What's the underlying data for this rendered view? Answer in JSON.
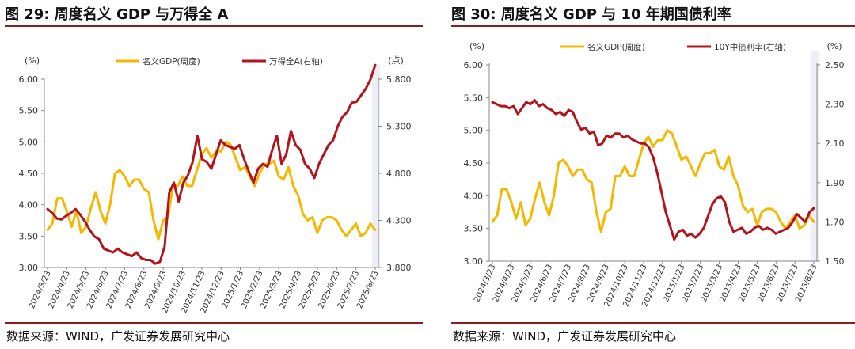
{
  "charts": [
    {
      "title": "图 29:  周度名义 GDP 与万得全 A",
      "source": "数据来源：WIND，广发证券发展研究中心",
      "chart_data": {
        "type": "line",
        "left_unit": "(%)",
        "right_unit": "(点)",
        "ylim": [
          3.0,
          6.0
        ],
        "y2lim": [
          3800,
          5800
        ],
        "yticks": [
          "3.00",
          "3.50",
          "4.00",
          "4.50",
          "5.00",
          "5.50",
          "6.00"
        ],
        "y2ticks": [
          "3,800",
          "4,300",
          "4,800",
          "5,300",
          "5,800"
        ],
        "xticks": [
          "2024/3/23",
          "2024/4/23",
          "2024/5/23",
          "2024/6/23",
          "2024/7/23",
          "2024/8/23",
          "2024/9/23",
          "2024/10/23",
          "2024/11/23",
          "2024/12/23",
          "2025/1/23",
          "2025/2/23",
          "2025/3/23",
          "2025/4/23",
          "2025/5/23",
          "2025/6/23",
          "2025/7/23",
          "2025/8/23"
        ],
        "series": [
          {
            "name": "名义GDP(周度)",
            "axis": "left",
            "color": "#f5b800",
            "values": [
              3.6,
              3.7,
              4.1,
              4.1,
              3.9,
              3.65,
              3.9,
              3.55,
              3.65,
              3.95,
              4.2,
              3.9,
              3.7,
              4.0,
              4.5,
              4.55,
              4.45,
              4.3,
              4.4,
              4.4,
              4.25,
              4.2,
              3.75,
              3.45,
              3.75,
              3.8,
              4.3,
              4.3,
              4.45,
              4.3,
              4.3,
              4.55,
              4.8,
              4.9,
              4.75,
              4.85,
              4.85,
              5.0,
              4.95,
              4.75,
              4.55,
              4.6,
              4.45,
              4.3,
              4.5,
              4.65,
              4.65,
              4.7,
              4.45,
              4.4,
              4.6,
              4.3,
              4.15,
              3.85,
              3.75,
              3.8,
              3.55,
              3.75,
              3.8,
              3.8,
              3.75,
              3.6,
              3.5,
              3.6,
              3.7,
              3.5,
              3.55,
              3.7,
              3.6
            ]
          },
          {
            "name": "万得全A(右轴)",
            "axis": "right",
            "color": "#b3141c",
            "values": [
              4420,
              4380,
              4320,
              4310,
              4350,
              4380,
              4420,
              4360,
              4290,
              4200,
              4130,
              4100,
              4000,
              3980,
              3960,
              4000,
              3960,
              3940,
              3920,
              3960,
              3900,
              3880,
              3880,
              3840,
              3860,
              4020,
              4600,
              4700,
              4500,
              4700,
              4780,
              4920,
              5200,
              4950,
              4920,
              4850,
              5000,
              5150,
              5100,
              5080,
              5060,
              5100,
              4950,
              4820,
              4700,
              4850,
              4900,
              4870,
              5050,
              5200,
              4900,
              5000,
              5250,
              5100,
              5050,
              4900,
              4850,
              4750,
              4900,
              5000,
              5100,
              5150,
              5300,
              5400,
              5450,
              5550,
              5560,
              5630,
              5700,
              5800,
              5950
            ]
          }
        ]
      }
    },
    {
      "title": "图 30:  周度名义 GDP 与 10 年期国债利率",
      "source": "数据来源：WIND，广发证券发展研究中心",
      "chart_data": {
        "type": "line",
        "left_unit": "(%)",
        "right_unit": "(%)",
        "ylim": [
          3.0,
          6.0
        ],
        "y2lim": [
          1.5,
          2.5
        ],
        "yticks": [
          "3.00",
          "3.50",
          "4.00",
          "4.50",
          "5.00",
          "5.50",
          "6.00"
        ],
        "y2ticks": [
          "1.50",
          "1.70",
          "1.90",
          "2.10",
          "2.30",
          "2.50"
        ],
        "xticks": [
          "2024/3/23",
          "2024/4/23",
          "2024/5/23",
          "2024/6/23",
          "2024/7/23",
          "2024/8/23",
          "2024/9/23",
          "2024/10/23",
          "2024/11/23",
          "2024/12/23",
          "2025/1/23",
          "2025/2/23",
          "2025/3/23",
          "2025/4/23",
          "2025/5/23",
          "2025/6/23",
          "2025/7/23",
          "2025/8/23"
        ],
        "series": [
          {
            "name": "名义GDP(周度)",
            "axis": "left",
            "color": "#f5b800",
            "values": [
              3.6,
              3.7,
              4.1,
              4.1,
              3.9,
              3.65,
              3.9,
              3.55,
              3.65,
              3.95,
              4.2,
              3.9,
              3.7,
              4.0,
              4.5,
              4.55,
              4.45,
              4.3,
              4.4,
              4.4,
              4.25,
              4.2,
              3.75,
              3.45,
              3.75,
              3.8,
              4.3,
              4.3,
              4.45,
              4.3,
              4.3,
              4.55,
              4.8,
              4.9,
              4.75,
              4.85,
              4.85,
              5.0,
              4.95,
              4.75,
              4.55,
              4.6,
              4.45,
              4.3,
              4.5,
              4.65,
              4.65,
              4.7,
              4.45,
              4.4,
              4.6,
              4.3,
              4.15,
              3.85,
              3.75,
              3.8,
              3.55,
              3.75,
              3.8,
              3.8,
              3.75,
              3.6,
              3.5,
              3.6,
              3.7,
              3.5,
              3.55,
              3.7,
              3.6
            ]
          },
          {
            "name": "10Y中债利率(右轴)",
            "axis": "right",
            "color": "#b3141c",
            "values": [
              2.31,
              2.3,
              2.29,
              2.29,
              2.28,
              2.29,
              2.25,
              2.28,
              2.31,
              2.3,
              2.32,
              2.29,
              2.3,
              2.28,
              2.27,
              2.25,
              2.26,
              2.24,
              2.27,
              2.26,
              2.21,
              2.17,
              2.18,
              2.15,
              2.16,
              2.09,
              2.1,
              2.14,
              2.13,
              2.15,
              2.15,
              2.13,
              2.14,
              2.12,
              2.11,
              2.1,
              2.1,
              2.08,
              2.03,
              1.95,
              1.85,
              1.75,
              1.68,
              1.61,
              1.65,
              1.66,
              1.63,
              1.64,
              1.62,
              1.64,
              1.67,
              1.73,
              1.79,
              1.82,
              1.83,
              1.8,
              1.7,
              1.65,
              1.66,
              1.67,
              1.64,
              1.65,
              1.67,
              1.68,
              1.66,
              1.67,
              1.66,
              1.64,
              1.65,
              1.66,
              1.67,
              1.7,
              1.74,
              1.72,
              1.7,
              1.75,
              1.77
            ]
          }
        ]
      }
    }
  ]
}
